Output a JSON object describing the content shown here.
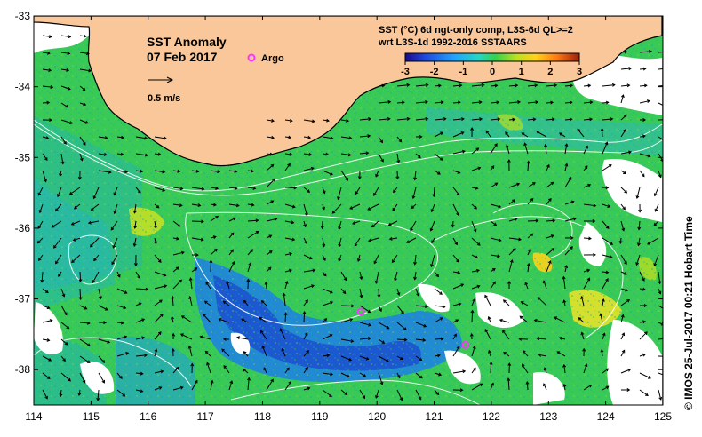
{
  "map": {
    "title": "SST Anomaly",
    "date": "07 Feb 2017",
    "legend_argo": "Argo",
    "vector_scale_label": "0.5 m/s",
    "product_line1": "SST (°C) 6d ngt-only comp, L3S-6d QL>=2",
    "product_line2": "wrt L3S-1d 1992-2016 SSTAARS",
    "credit": "© IMOS 25-Jul-2017 00:21 Hobart Time",
    "lon_ticks": [
      "114",
      "115",
      "116",
      "117",
      "118",
      "119",
      "120",
      "121",
      "122",
      "123",
      "124",
      "125"
    ],
    "lat_ticks": [
      "-33",
      "-34",
      "-35",
      "-36",
      "-37",
      "-38"
    ],
    "colorbar_ticks": [
      "-3",
      "-2",
      "-1",
      "0",
      "1",
      "2",
      "3"
    ],
    "colors": {
      "land": "#f9c79a",
      "argo": "#ff33ff",
      "background": "#ffffff"
    },
    "argo_floats": [
      {
        "lon": 119.72,
        "lat": -37.18
      },
      {
        "lon": 121.55,
        "lat": -37.65
      }
    ]
  }
}
